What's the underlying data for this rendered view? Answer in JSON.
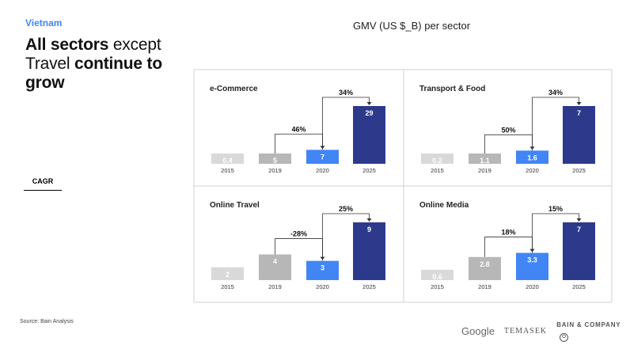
{
  "region": "Vietnam",
  "headline": {
    "b1": "All sectors",
    "n1": " except Travel ",
    "b2": "continue to grow"
  },
  "cagr_label": "CAGR",
  "chart_title": "GMV (US $_B) per sector",
  "source": "Source: Bain Analysis",
  "logos": {
    "google": "Google",
    "temasek": "TEMASEK",
    "bain": "BAIN & COMPANY"
  },
  "colors": {
    "light_grey": "#d9d9d9",
    "mid_grey": "#b7b7b7",
    "blue": "#4285f4",
    "navy": "#2d3a8c"
  },
  "chart_data": [
    {
      "type": "bar",
      "title": "e-Commerce",
      "categories": [
        "2015",
        "2019",
        "2020",
        "2025"
      ],
      "values": [
        0.4,
        5,
        7,
        29
      ],
      "labels": [
        "0.4",
        "5",
        "7",
        "29"
      ],
      "cagr": [
        {
          "from": "2019",
          "to": "2020",
          "label": "46%"
        },
        {
          "from": "2020",
          "to": "2025",
          "label": "34%"
        }
      ]
    },
    {
      "type": "bar",
      "title": "Transport & Food",
      "categories": [
        "2015",
        "2019",
        "2020",
        "2025"
      ],
      "values": [
        0.2,
        1.1,
        1.6,
        7
      ],
      "labels": [
        "0.2",
        "1.1",
        "1.6",
        "7"
      ],
      "cagr": [
        {
          "from": "2019",
          "to": "2020",
          "label": "50%"
        },
        {
          "from": "2020",
          "to": "2025",
          "label": "34%"
        }
      ]
    },
    {
      "type": "bar",
      "title": "Online Travel",
      "categories": [
        "2015",
        "2019",
        "2020",
        "2025"
      ],
      "values": [
        2,
        4,
        3,
        9
      ],
      "labels": [
        "2",
        "4",
        "3",
        "9"
      ],
      "cagr": [
        {
          "from": "2019",
          "to": "2020",
          "label": "-28%"
        },
        {
          "from": "2020",
          "to": "2025",
          "label": "25%"
        }
      ]
    },
    {
      "type": "bar",
      "title": "Online Media",
      "categories": [
        "2015",
        "2019",
        "2020",
        "2025"
      ],
      "values": [
        0.6,
        2.8,
        3.3,
        7
      ],
      "labels": [
        "0.6",
        "2.8",
        "3.3",
        "7"
      ],
      "cagr": [
        {
          "from": "2019",
          "to": "2020",
          "label": "18%"
        },
        {
          "from": "2020",
          "to": "2025",
          "label": "15%"
        }
      ]
    }
  ]
}
